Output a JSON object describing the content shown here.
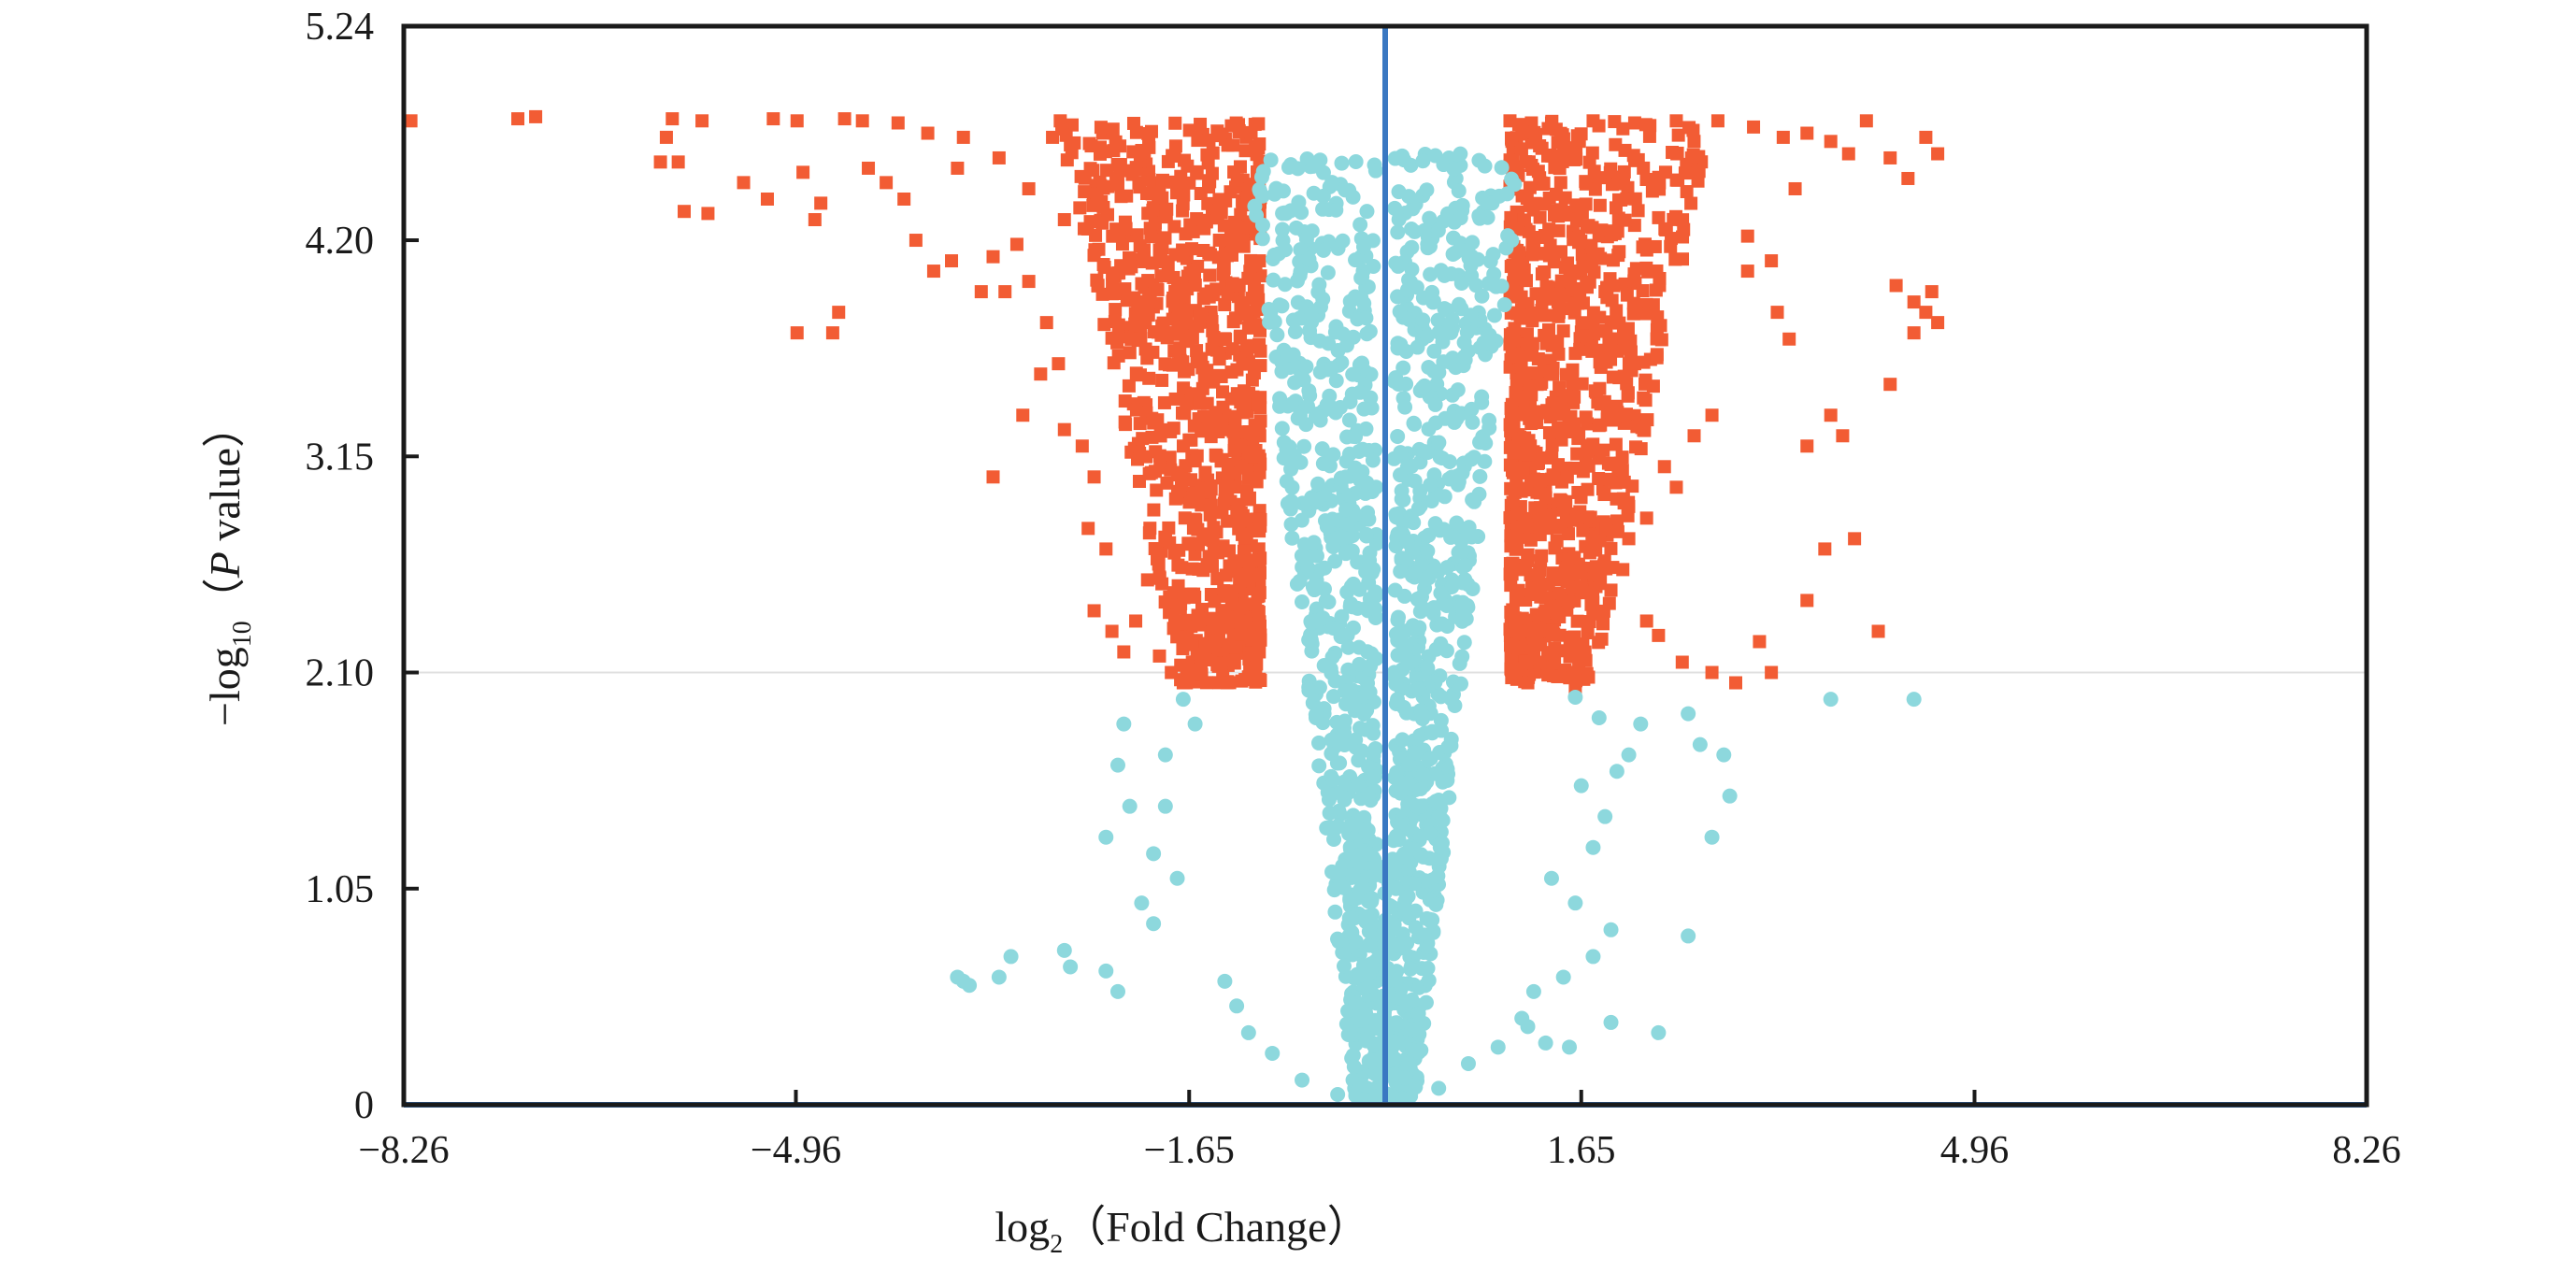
{
  "chart_data": {
    "type": "scatter",
    "title": "",
    "xlabel": {
      "prefix": "log",
      "subscript": "2",
      "text": "（Fold Change）"
    },
    "ylabel": {
      "prefix": "−log",
      "subscript": "10",
      "open": "（",
      "italic": "P",
      "rest": " value",
      "close": "）"
    },
    "xlim": [
      -8.26,
      8.26
    ],
    "ylim": [
      0,
      5.24
    ],
    "x_ticks": [
      -8.26,
      -4.96,
      -1.65,
      1.65,
      4.96,
      8.26
    ],
    "x_tick_labels": [
      "−8.26",
      "−4.96",
      "−1.65",
      "1.65",
      "4.96",
      "8.26"
    ],
    "y_ticks": [
      0,
      1.05,
      2.1,
      3.15,
      4.2,
      5.24
    ],
    "y_tick_labels": [
      "0",
      "1.05",
      "2.10",
      "3.15",
      "4.20",
      "5.24"
    ],
    "thresholds": {
      "y": 2.1,
      "x": 0
    },
    "grid": false,
    "colors": {
      "significant": "#f25c34",
      "not_significant": "#8dd8dd",
      "axis_line": "#3a78c2",
      "frame": "#1a1a1a",
      "threshold_line": "#e0e0e0"
    },
    "series": [
      {
        "marker": "square",
        "note_color_key": "significant",
        "points": [
          [
            -8.2,
            4.78
          ],
          [
            -7.3,
            4.79
          ],
          [
            -7.15,
            4.8
          ],
          [
            -6.0,
            4.79
          ],
          [
            -6.05,
            4.7
          ],
          [
            -6.1,
            4.58
          ],
          [
            -5.95,
            4.58
          ],
          [
            -5.75,
            4.78
          ],
          [
            -5.9,
            4.34
          ],
          [
            -5.7,
            4.33
          ],
          [
            -5.4,
            4.48
          ],
          [
            -5.2,
            4.4
          ],
          [
            -5.15,
            4.79
          ],
          [
            -4.95,
            4.78
          ],
          [
            -4.9,
            4.53
          ],
          [
            -4.8,
            4.3
          ],
          [
            -4.75,
            4.38
          ],
          [
            -4.95,
            3.75
          ],
          [
            -4.65,
            3.75
          ],
          [
            -4.6,
            3.85
          ],
          [
            -4.55,
            4.79
          ],
          [
            -4.4,
            4.78
          ],
          [
            -4.35,
            4.55
          ],
          [
            -4.2,
            4.48
          ],
          [
            -4.05,
            4.4
          ],
          [
            -3.95,
            4.2
          ],
          [
            -3.8,
            4.05
          ],
          [
            -3.65,
            4.1
          ],
          [
            -3.6,
            4.55
          ],
          [
            -3.4,
            3.95
          ],
          [
            -3.3,
            4.12
          ],
          [
            -3.2,
            3.95
          ],
          [
            -3.1,
            4.18
          ],
          [
            -3.0,
            4.0
          ],
          [
            -2.85,
            3.8
          ],
          [
            -2.9,
            3.55
          ],
          [
            -2.75,
            3.6
          ],
          [
            -3.05,
            3.35
          ],
          [
            -2.7,
            3.28
          ],
          [
            -2.7,
            4.3
          ],
          [
            -3.3,
            3.05
          ],
          [
            -2.55,
            3.2
          ],
          [
            -2.45,
            3.05
          ],
          [
            -2.5,
            2.8
          ],
          [
            -2.35,
            2.7
          ],
          [
            -2.45,
            2.4
          ],
          [
            -2.3,
            2.3
          ],
          [
            -2.2,
            2.2
          ],
          [
            -2.1,
            2.35
          ],
          [
            -2.0,
            2.55
          ],
          [
            -1.9,
            2.18
          ],
          [
            -1.8,
            2.1
          ],
          [
            -1.7,
            2.05
          ],
          [
            -1.55,
            2.13
          ],
          [
            -4.1,
            4.77
          ],
          [
            -3.85,
            4.72
          ],
          [
            -3.55,
            4.7
          ],
          [
            -3.25,
            4.6
          ],
          [
            -3.0,
            4.45
          ],
          [
            -2.8,
            4.7
          ]
        ]
      },
      {
        "marker": "square",
        "note_color_key": "significant",
        "points": [
          [
            1.05,
            4.78
          ],
          [
            1.4,
            4.77
          ],
          [
            1.75,
            4.78
          ],
          [
            2.1,
            4.77
          ],
          [
            2.45,
            4.78
          ],
          [
            2.8,
            4.78
          ],
          [
            3.1,
            4.75
          ],
          [
            3.35,
            4.7
          ],
          [
            3.55,
            4.72
          ],
          [
            3.75,
            4.68
          ],
          [
            3.9,
            4.62
          ],
          [
            4.05,
            4.78
          ],
          [
            4.25,
            4.6
          ],
          [
            4.55,
            4.7
          ],
          [
            4.4,
            4.5
          ],
          [
            4.65,
            4.62
          ],
          [
            3.45,
            4.45
          ],
          [
            3.05,
            4.22
          ],
          [
            3.05,
            4.05
          ],
          [
            3.25,
            4.1
          ],
          [
            3.3,
            3.85
          ],
          [
            4.3,
            3.98
          ],
          [
            4.45,
            3.9
          ],
          [
            4.55,
            3.85
          ],
          [
            4.6,
            3.95
          ],
          [
            4.65,
            3.8
          ],
          [
            4.45,
            3.75
          ],
          [
            4.25,
            3.5
          ],
          [
            3.4,
            3.72
          ],
          [
            3.75,
            3.35
          ],
          [
            3.85,
            3.25
          ],
          [
            3.55,
            3.2
          ],
          [
            2.75,
            3.35
          ],
          [
            2.6,
            3.25
          ],
          [
            2.45,
            3.0
          ],
          [
            2.35,
            3.1
          ],
          [
            2.2,
            2.85
          ],
          [
            2.05,
            2.75
          ],
          [
            2.0,
            2.6
          ],
          [
            1.9,
            2.5
          ],
          [
            2.2,
            2.35
          ],
          [
            2.3,
            2.28
          ],
          [
            2.5,
            2.15
          ],
          [
            2.75,
            2.1
          ],
          [
            2.95,
            2.05
          ],
          [
            3.25,
            2.1
          ],
          [
            3.15,
            2.25
          ],
          [
            3.55,
            2.45
          ],
          [
            3.7,
            2.7
          ],
          [
            3.95,
            2.75
          ],
          [
            4.15,
            2.3
          ],
          [
            1.6,
            2.02
          ],
          [
            1.45,
            2.08
          ],
          [
            1.3,
            2.15
          ],
          [
            1.2,
            2.05
          ],
          [
            1.35,
            2.4
          ],
          [
            1.15,
            2.6
          ],
          [
            1.5,
            2.9
          ],
          [
            1.8,
            3.3
          ],
          [
            2.1,
            3.6
          ]
        ]
      },
      {
        "marker": "circle",
        "note_color_key": "not_significant",
        "points": [
          [
            -2.2,
            1.85
          ],
          [
            -1.7,
            1.97
          ],
          [
            -1.6,
            1.85
          ],
          [
            -1.85,
            1.7
          ],
          [
            -2.25,
            1.65
          ],
          [
            -2.15,
            1.45
          ],
          [
            -2.35,
            1.3
          ],
          [
            -1.85,
            1.45
          ],
          [
            -1.95,
            1.22
          ],
          [
            -1.75,
            1.1
          ],
          [
            -2.05,
            0.98
          ],
          [
            -1.95,
            0.88
          ],
          [
            -2.7,
            0.75
          ],
          [
            -2.65,
            0.67
          ],
          [
            -3.15,
            0.72
          ],
          [
            -3.25,
            0.62
          ],
          [
            -2.35,
            0.65
          ],
          [
            -2.25,
            0.55
          ],
          [
            -3.5,
            0.58
          ],
          [
            -3.55,
            0.6
          ],
          [
            -3.6,
            0.62
          ],
          [
            -1.35,
            0.6
          ],
          [
            -1.25,
            0.48
          ],
          [
            -1.15,
            0.35
          ],
          [
            -0.95,
            0.25
          ],
          [
            -0.7,
            0.12
          ],
          [
            -0.4,
            0.05
          ],
          [
            -0.15,
            0.02
          ],
          [
            0.15,
            0.03
          ],
          [
            0.45,
            0.08
          ],
          [
            0.7,
            0.2
          ],
          [
            0.95,
            0.28
          ],
          [
            1.15,
            0.42
          ],
          [
            1.25,
            0.55
          ],
          [
            1.5,
            0.62
          ],
          [
            1.75,
            0.72
          ],
          [
            1.9,
            0.85
          ],
          [
            1.6,
            0.98
          ],
          [
            1.4,
            1.1
          ],
          [
            1.75,
            1.25
          ],
          [
            1.85,
            1.4
          ],
          [
            1.65,
            1.55
          ],
          [
            1.95,
            1.62
          ],
          [
            2.05,
            1.7
          ],
          [
            2.15,
            1.85
          ],
          [
            1.8,
            1.88
          ],
          [
            1.6,
            1.98
          ],
          [
            2.55,
            1.9
          ],
          [
            2.65,
            1.75
          ],
          [
            3.75,
            1.97
          ],
          [
            4.45,
            1.97
          ],
          [
            2.85,
            1.7
          ],
          [
            2.9,
            1.5
          ],
          [
            2.75,
            1.3
          ],
          [
            1.35,
            0.3
          ],
          [
            1.55,
            0.28
          ],
          [
            1.9,
            0.4
          ],
          [
            2.3,
            0.35
          ],
          [
            2.55,
            0.82
          ],
          [
            1.2,
            0.38
          ]
        ]
      }
    ],
    "regions": [
      {
        "note_color_key": "significant",
        "x_from": -1.05,
        "x_to": -1.6,
        "y_from": 2.05,
        "y_to": 4.78
      },
      {
        "note_color_key": "significant",
        "x_from": 1.05,
        "x_to": 1.6,
        "y_from": 2.05,
        "y_to": 4.78
      },
      {
        "note_color_key": "not_significant",
        "x_from": -1.05,
        "x_to": 1.05,
        "y_from": 0.0,
        "y_to": 4.62
      }
    ]
  }
}
